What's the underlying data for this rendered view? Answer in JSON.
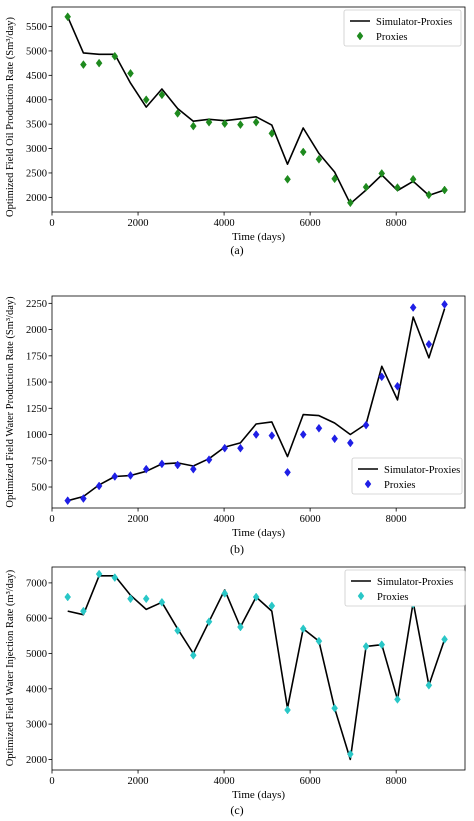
{
  "figures": [
    {
      "caption": "(a)",
      "chart_data": {
        "type": "line",
        "title": "",
        "xlabel": "Time (days)",
        "ylabel": "Optimized Field Oil Production Rate (Sm³/day)",
        "xlim": [
          0,
          9600
        ],
        "ylim": [
          1700,
          5900
        ],
        "xticks": [
          0,
          2000,
          4000,
          6000,
          8000
        ],
        "yticks": [
          2000,
          2500,
          3000,
          3500,
          4000,
          4500,
          5000,
          5500
        ],
        "grid": false,
        "legend_position": "top-right",
        "series": [
          {
            "name": "Simulator-Proxies",
            "kind": "line",
            "color": "#000000",
            "x": [
              365,
              730,
              1095,
              1460,
              1825,
              2190,
              2555,
              2920,
              3285,
              3650,
              4015,
              4380,
              4745,
              5110,
              5475,
              5840,
              6205,
              6570,
              6935,
              7300,
              7665,
              8030,
              8395,
              8760,
              9125
            ],
            "y": [
              5700,
              4960,
              4930,
              4930,
              4340,
              3850,
              4220,
              3820,
              3560,
              3600,
              3570,
              3610,
              3650,
              3480,
              2680,
              3420,
              2900,
              2520,
              1870,
              2150,
              2460,
              2140,
              2330,
              2040,
              2150
            ]
          },
          {
            "name": "Proxies",
            "kind": "marker",
            "marker": "diamond",
            "color": "#1e8a1e",
            "x": [
              365,
              730,
              1095,
              1460,
              1825,
              2190,
              2555,
              2920,
              3285,
              3650,
              4015,
              4380,
              4745,
              5110,
              5475,
              5840,
              6205,
              6570,
              6935,
              7300,
              7665,
              8030,
              8395,
              8760,
              9125
            ],
            "y": [
              5700,
              4720,
              4750,
              4890,
              4540,
              4000,
              4100,
              3720,
              3460,
              3540,
              3510,
              3490,
              3540,
              3310,
              2370,
              2930,
              2780,
              2380,
              1890,
              2210,
              2490,
              2200,
              2370,
              2050,
              2150
            ]
          }
        ]
      }
    },
    {
      "caption": "(b)",
      "chart_data": {
        "type": "line",
        "title": "",
        "xlabel": "Time (days)",
        "ylabel": "Optimized Field Water Production Rate (Sm³/day)",
        "xlim": [
          0,
          9600
        ],
        "ylim": [
          300,
          2320
        ],
        "xticks": [
          0,
          2000,
          4000,
          6000,
          8000
        ],
        "yticks": [
          500,
          750,
          1000,
          1250,
          1500,
          1750,
          2000,
          2250
        ],
        "grid": false,
        "legend_position": "center-right",
        "series": [
          {
            "name": "Simulator-Proxies",
            "kind": "line",
            "color": "#000000",
            "x": [
              365,
              730,
              1095,
              1460,
              1825,
              2190,
              2555,
              2920,
              3285,
              3650,
              4015,
              4380,
              4745,
              5110,
              5475,
              5840,
              6205,
              6570,
              6935,
              7300,
              7665,
              8030,
              8395,
              8760,
              9125
            ],
            "y": [
              370,
              410,
              520,
              600,
              610,
              650,
              720,
              730,
              700,
              770,
              880,
              920,
              1100,
              1120,
              790,
              1190,
              1180,
              1110,
              1000,
              1100,
              1650,
              1330,
              2120,
              1730,
              2200
            ]
          },
          {
            "name": "Proxies",
            "kind": "marker",
            "marker": "diamond",
            "color": "#1f1fe6",
            "x": [
              365,
              730,
              1095,
              1460,
              1825,
              2190,
              2555,
              2920,
              3285,
              3650,
              4015,
              4380,
              4745,
              5110,
              5475,
              5840,
              6205,
              6570,
              6935,
              7300,
              7665,
              8030,
              8395,
              8760,
              9125
            ],
            "y": [
              370,
              390,
              510,
              600,
              610,
              670,
              720,
              710,
              670,
              760,
              870,
              870,
              1000,
              990,
              640,
              1000,
              1060,
              960,
              920,
              1090,
              1550,
              1460,
              2210,
              1860,
              2240
            ]
          }
        ]
      }
    },
    {
      "caption": "(c)",
      "chart_data": {
        "type": "line",
        "title": "",
        "xlabel": "Time (days)",
        "ylabel": "Optimized Field Water Injection Rate (m³/day)",
        "xlim": [
          0,
          9600
        ],
        "ylim": [
          1700,
          7450
        ],
        "xticks": [
          0,
          2000,
          4000,
          6000,
          8000
        ],
        "yticks": [
          2000,
          3000,
          4000,
          5000,
          6000,
          7000
        ],
        "grid": false,
        "legend_position": "top-right",
        "series": [
          {
            "name": "Simulator-Proxies",
            "kind": "line",
            "color": "#000000",
            "x": [
              365,
              730,
              1095,
              1460,
              1825,
              2190,
              2555,
              2920,
              3285,
              3650,
              4015,
              4380,
              4745,
              5110,
              5475,
              5840,
              6205,
              6570,
              6935,
              7300,
              7665,
              8030,
              8395,
              8760,
              9125
            ],
            "y": [
              6200,
              6100,
              7200,
              7200,
              6650,
              6250,
              6450,
              5700,
              5000,
              5900,
              6800,
              5750,
              6600,
              6200,
              3450,
              5700,
              5350,
              3450,
              2000,
              5200,
              5250,
              3700,
              6450,
              4100,
              5400
            ]
          },
          {
            "name": "Proxies",
            "kind": "marker",
            "marker": "diamond",
            "color": "#29c7c7",
            "x": [
              365,
              730,
              1095,
              1460,
              1825,
              2190,
              2555,
              2920,
              3285,
              3650,
              4015,
              4380,
              4745,
              5110,
              5475,
              5840,
              6205,
              6570,
              6935,
              7300,
              7665,
              8030,
              8395,
              8760,
              9125
            ],
            "y": [
              6600,
              6200,
              7250,
              7150,
              6550,
              6550,
              6450,
              5650,
              4950,
              5900,
              6700,
              5750,
              6600,
              6350,
              3400,
              5700,
              5350,
              3450,
              2150,
              5200,
              5250,
              3700,
              6400,
              4100,
              5400
            ]
          }
        ]
      }
    }
  ]
}
